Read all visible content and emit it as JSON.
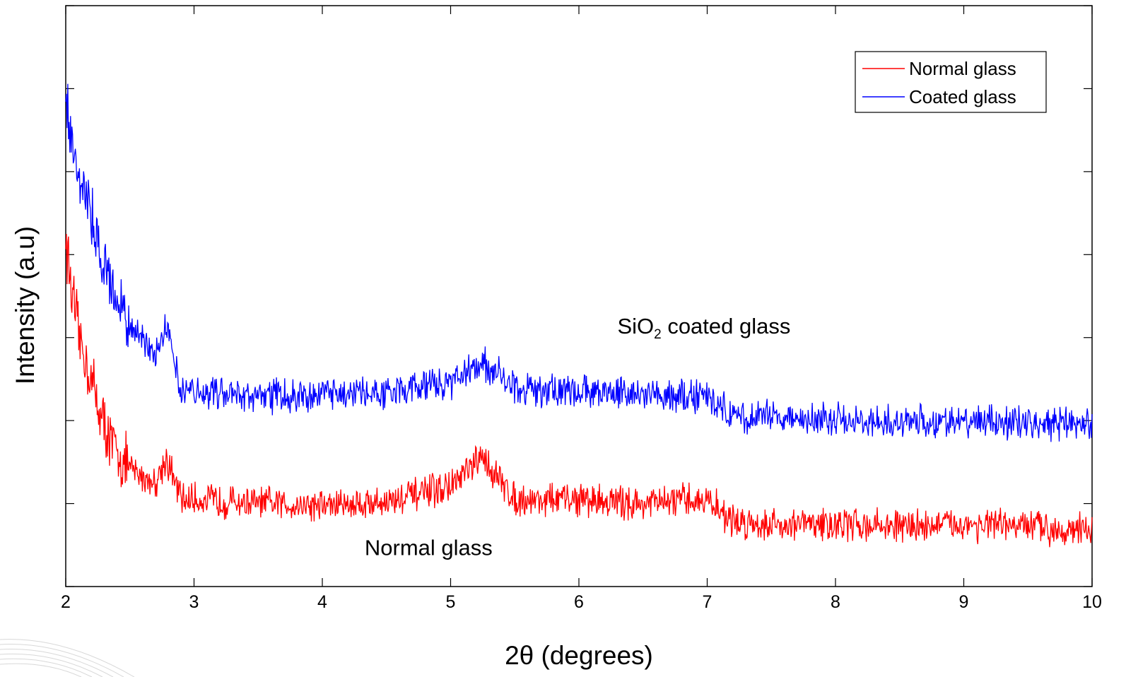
{
  "chart_data": {
    "type": "line",
    "title": "",
    "xlabel": "2θ (degrees)",
    "ylabel": "Intensity (a.u)",
    "xlim": [
      2,
      10
    ],
    "ylim": [
      0,
      7
    ],
    "x_ticks": [
      "2",
      "3",
      "4",
      "5",
      "6",
      "7",
      "8",
      "9",
      "10"
    ],
    "y_tick_labels": false,
    "grid": false,
    "legend": {
      "placement": "top-right",
      "entries": [
        "Normal glass",
        "Coated glass"
      ]
    },
    "annotations": {
      "coated": {
        "base": "SiO",
        "sub": "2",
        "rest": " coated glass",
        "x": 6.3,
        "y": 3.05
      },
      "normal": {
        "text": "Normal glass",
        "x": 4.33,
        "y": 0.38
      }
    },
    "series": [
      {
        "name": "Normal glass",
        "color": "#ff0000",
        "x": [
          2.0,
          2.05,
          2.1,
          2.15,
          2.2,
          2.25,
          2.3,
          2.35,
          2.4,
          2.5,
          2.6,
          2.7,
          2.78,
          2.9,
          3.0,
          3.5,
          4.0,
          4.5,
          5.0,
          5.25,
          5.5,
          6.0,
          6.5,
          7.0,
          7.2,
          7.5,
          8.0,
          8.5,
          9.0,
          9.5,
          10.0
        ],
        "y": [
          4.2,
          3.5,
          3.05,
          2.75,
          2.5,
          2.2,
          1.95,
          1.75,
          1.6,
          1.42,
          1.32,
          1.25,
          1.55,
          1.05,
          1.05,
          1.0,
          0.98,
          1.02,
          1.2,
          1.55,
          1.05,
          1.05,
          1.0,
          1.05,
          0.78,
          0.75,
          0.75,
          0.73,
          0.75,
          0.72,
          0.68
        ]
      },
      {
        "name": "Coated glass",
        "color": "#0000ff",
        "x": [
          2.0,
          2.05,
          2.1,
          2.15,
          2.2,
          2.25,
          2.3,
          2.35,
          2.4,
          2.5,
          2.6,
          2.7,
          2.78,
          2.9,
          3.0,
          3.5,
          4.0,
          4.5,
          5.0,
          5.25,
          5.5,
          6.0,
          6.5,
          7.0,
          7.2,
          7.5,
          8.0,
          8.5,
          9.0,
          9.5,
          10.0
        ],
        "y": [
          5.9,
          5.4,
          5.0,
          4.75,
          4.45,
          4.2,
          3.9,
          3.65,
          3.45,
          3.15,
          2.95,
          2.85,
          3.2,
          2.4,
          2.35,
          2.3,
          2.3,
          2.35,
          2.45,
          2.7,
          2.4,
          2.35,
          2.3,
          2.3,
          2.05,
          2.05,
          2.0,
          2.0,
          1.98,
          1.98,
          1.95
        ]
      }
    ]
  }
}
